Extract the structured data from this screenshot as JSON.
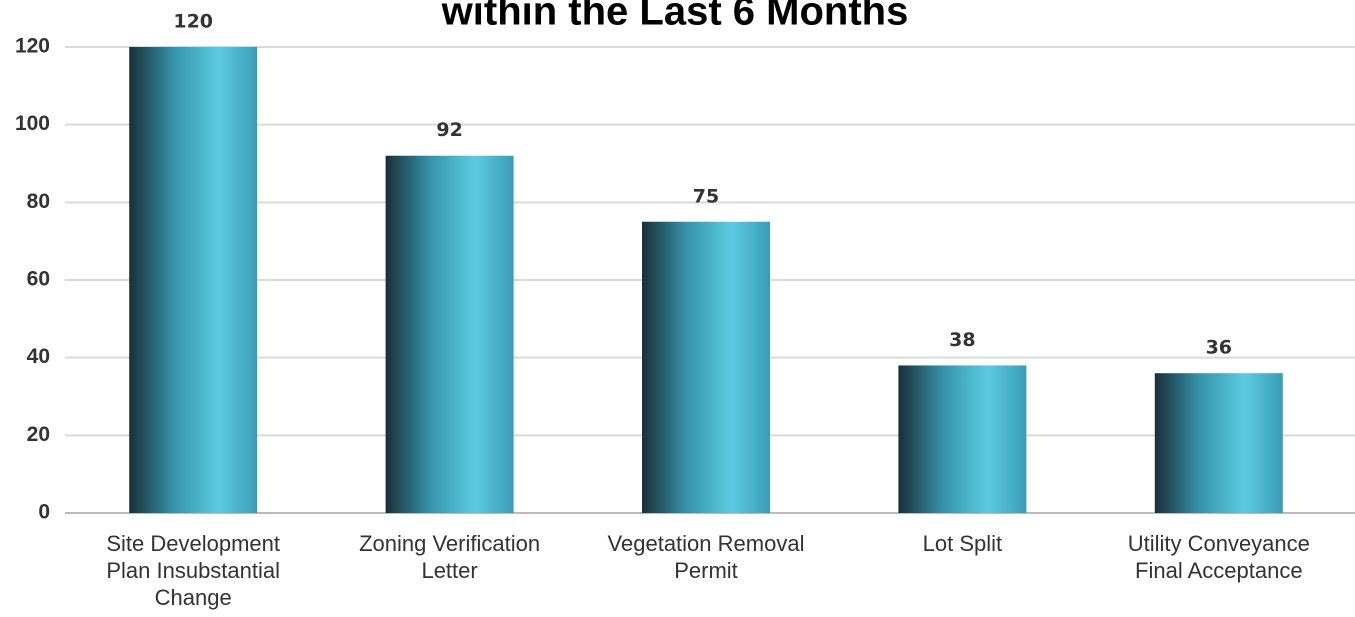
{
  "chart_data": {
    "type": "bar",
    "title": "within the Last 6 Months",
    "categories": [
      "Site Development Plan Insubstantial Change",
      "Zoning Verification Letter",
      "Vegetation Removal Permit",
      "Lot Split",
      "Utility Conveyance Final Acceptance"
    ],
    "values": [
      120,
      92,
      75,
      38,
      36
    ],
    "ylim": [
      0,
      120
    ],
    "yticks": [
      0,
      20,
      40,
      60,
      80,
      100,
      120
    ],
    "grid": true
  }
}
